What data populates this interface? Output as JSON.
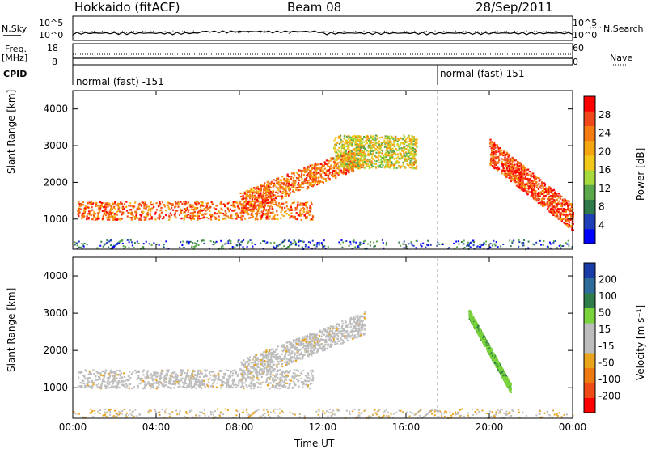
{
  "header": {
    "title": "Hokkaido (fitACF)",
    "beam": "Beam 08",
    "date": "28/Sep/2011"
  },
  "top_panels": {
    "nsky_label": "N.Sky",
    "nsky_scale_top": "10^5",
    "nsky_scale_bottom": "10^0",
    "nsearch_label": "N.Search",
    "freq_label_1": "Freq.",
    "freq_label_2": "[MHz]",
    "freq_top": "18",
    "freq_bottom": "8",
    "nave_top": "60",
    "nave_bottom": "0",
    "nave_label": "Nave",
    "cpid_label": "CPID",
    "cpid_1": "normal (fast) -151",
    "cpid_2": "normal (fast) 151"
  },
  "colors": {
    "power": [
      "#0000ff",
      "#1f3fb8",
      "#2e7a4a",
      "#5aa84a",
      "#a6d93a",
      "#f2c81a",
      "#f5a510",
      "#f47a12",
      "#f04818",
      "#ff0000"
    ],
    "velocity": [
      "#1a3ca8",
      "#2c6b9a",
      "#2e7d4a",
      "#7ad33a",
      "#bdbdbd",
      "#bdbdbd",
      "#e9a41c",
      "#f07a12",
      "#f04a16",
      "#ff0000"
    ]
  },
  "chart_data": [
    {
      "type": "heatmap",
      "title": "Power",
      "xlabel": "Time UT",
      "ylabel": "Slant Range [km]",
      "x_ticks": [
        "00:00",
        "04:00",
        "08:00",
        "12:00",
        "16:00",
        "20:00",
        "00:00"
      ],
      "y_ticks": [
        "1000",
        "2000",
        "3000",
        "4000"
      ],
      "xlim": [
        0,
        24
      ],
      "ylim": [
        180,
        4500
      ],
      "colorbar_label": "Power [dB]",
      "colorbar_ticks": [
        "4",
        "8",
        "12",
        "16",
        "20",
        "24",
        "28"
      ],
      "features": [
        {
          "region": "near range band",
          "t_start": 0.2,
          "t_end": 11.5,
          "range_km": [
            1000,
            1500
          ],
          "level_db": 24
        },
        {
          "region": "rising band",
          "t_start": 8,
          "t_end": 14,
          "range_km": [
            1400,
            2300
          ],
          "level_db": 24
        },
        {
          "region": "high range patch",
          "t_start": 12.5,
          "t_end": 16.5,
          "range_km": [
            2400,
            3300
          ],
          "level_db": 16
        },
        {
          "region": "post-midnight decay",
          "t_start": 20,
          "t_end": 24,
          "range_km": [
            700,
            2800
          ],
          "level_db": 26
        }
      ]
    },
    {
      "type": "heatmap",
      "title": "Velocity",
      "xlabel": "Time UT",
      "ylabel": "Slant Range [km]",
      "x_ticks": [
        "00:00",
        "04:00",
        "08:00",
        "12:00",
        "16:00",
        "20:00",
        "00:00"
      ],
      "y_ticks": [
        "1000",
        "2000",
        "3000",
        "4000"
      ],
      "xlim": [
        0,
        24
      ],
      "ylim": [
        180,
        4500
      ],
      "colorbar_label": "Velocity [m s⁻¹]",
      "colorbar_ticks": [
        "200",
        "100",
        "50",
        "15",
        "-15",
        "-50",
        "-100",
        "-200"
      ],
      "features": [
        {
          "region": "ground scatter band",
          "t_start": 0.2,
          "t_end": 11.5,
          "range_km": [
            1000,
            1500
          ],
          "velocity_ms": 0
        },
        {
          "region": "rising band",
          "t_start": 8,
          "t_end": 14,
          "range_km": [
            1400,
            2300
          ],
          "velocity_ms": 0
        },
        {
          "region": "positive streak",
          "t_start": 19,
          "t_end": 21,
          "range_km": [
            1000,
            3000
          ],
          "velocity_ms": 40
        }
      ]
    }
  ],
  "axes": {
    "time_label": "Time UT",
    "power_cb_label": "Power [dB]",
    "vel_cb_label": "Velocity [m s⁻¹]"
  }
}
